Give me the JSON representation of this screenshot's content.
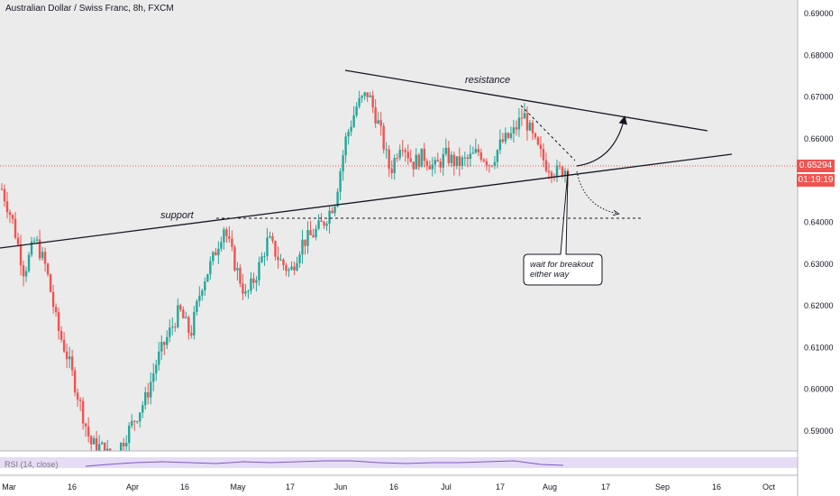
{
  "header": {
    "title": "Australian Dollar / Swiss Franc, 8h, FXCM"
  },
  "price_axis": {
    "ticks": [
      "0.69000",
      "0.68000",
      "0.67000",
      "0.66000",
      "0.65000",
      "0.64000",
      "0.63000",
      "0.62000",
      "0.61000",
      "0.60000",
      "0.59000"
    ],
    "current_price": "0.65294",
    "countdown": "01:19:19"
  },
  "time_axis": {
    "ticks": [
      "Mar",
      "16",
      "Apr",
      "16",
      "May",
      "17",
      "Jun",
      "16",
      "Jul",
      "17",
      "Aug",
      "17",
      "Sep",
      "16",
      "Oct"
    ]
  },
  "annotations": {
    "resistance": "resistance",
    "support": "support",
    "callout_line1": "wait for breakout",
    "callout_line2": "either way"
  },
  "rsi": {
    "label": "RSI (14, close)"
  },
  "colors": {
    "up": "#26a69a",
    "down": "#ef5350",
    "background": "#ebebeb",
    "rsi_line": "#7e57c2"
  },
  "chart_data": {
    "type": "candlestick",
    "title": "Australian Dollar / Swiss Franc, 8h, FXCM",
    "ylim": [
      0.585,
      0.695
    ],
    "current_price": 0.65294,
    "trendlines": [
      {
        "name": "resistance",
        "from": [
          "~Jun 1",
          0.6765
        ],
        "to": [
          "~Aug 28",
          0.6615
        ]
      },
      {
        "name": "support",
        "from": [
          "~Feb 25",
          0.6333
        ],
        "to": [
          "~Aug 30",
          0.6556
        ]
      },
      {
        "name": "horizontal support",
        "value": 0.6404,
        "from": "~Apr 20",
        "to": "~Aug 10"
      }
    ],
    "close_path": [
      [
        "~Feb 25",
        0.648
      ],
      [
        "~Mar 1",
        0.64
      ],
      [
        "~Mar 4",
        0.628
      ],
      [
        "~Mar 8",
        0.636
      ],
      [
        "~Mar 12",
        0.629
      ],
      [
        "~Mar 14",
        0.615
      ],
      [
        "~Mar 17",
        0.607
      ],
      [
        "~Mar 19",
        0.597
      ],
      [
        "~Mar 21",
        0.587
      ],
      [
        "~Mar 25",
        0.586
      ],
      [
        "~Mar 29",
        0.583
      ],
      [
        "~Apr 2",
        0.588
      ],
      [
        "~Apr 5",
        0.593
      ],
      [
        "~Apr 9",
        0.598
      ],
      [
        "~Apr 13",
        0.607
      ],
      [
        "~Apr 15",
        0.613
      ],
      [
        "~Apr 18",
        0.619
      ],
      [
        "~Apr 21",
        0.613
      ],
      [
        "~Apr 25",
        0.625
      ],
      [
        "~Apr 28",
        0.631
      ],
      [
        "~May 1",
        0.639
      ],
      [
        "~May 3",
        0.63
      ],
      [
        "~May 6",
        0.622
      ],
      [
        "~May 9",
        0.628
      ],
      [
        "~May 13",
        0.636
      ],
      [
        "~May 16",
        0.631
      ],
      [
        "~May 19",
        0.628
      ],
      [
        "~May 22",
        0.635
      ],
      [
        "~May 25",
        0.637
      ],
      [
        "~May 28",
        0.64
      ],
      [
        "~May 31",
        0.645
      ],
      [
        "~Jun 2",
        0.66
      ],
      [
        "~Jun 4",
        0.668
      ],
      [
        "~Jun 6",
        0.671
      ],
      [
        "~Jun 8",
        0.663
      ],
      [
        "~Jun 10",
        0.652
      ],
      [
        "~Jun 12",
        0.66
      ],
      [
        "~Jun 15",
        0.654
      ],
      [
        "~Jun 18",
        0.656
      ],
      [
        "~Jun 21",
        0.653
      ],
      [
        "~Jun 25",
        0.656
      ],
      [
        "~Jun 29",
        0.654
      ],
      [
        "~Jul 3",
        0.655
      ],
      [
        "~Jul 7",
        0.657
      ],
      [
        "~Jul 11",
        0.654
      ],
      [
        "~Jul 15",
        0.659
      ],
      [
        "~Jul 18",
        0.661
      ],
      [
        "~Jul 21",
        0.666
      ],
      [
        "~Jul 24",
        0.659
      ],
      [
        "~Jul 27",
        0.654
      ],
      [
        "~Jul 30",
        0.652
      ],
      [
        "~Aug 2",
        0.653
      ]
    ]
  }
}
